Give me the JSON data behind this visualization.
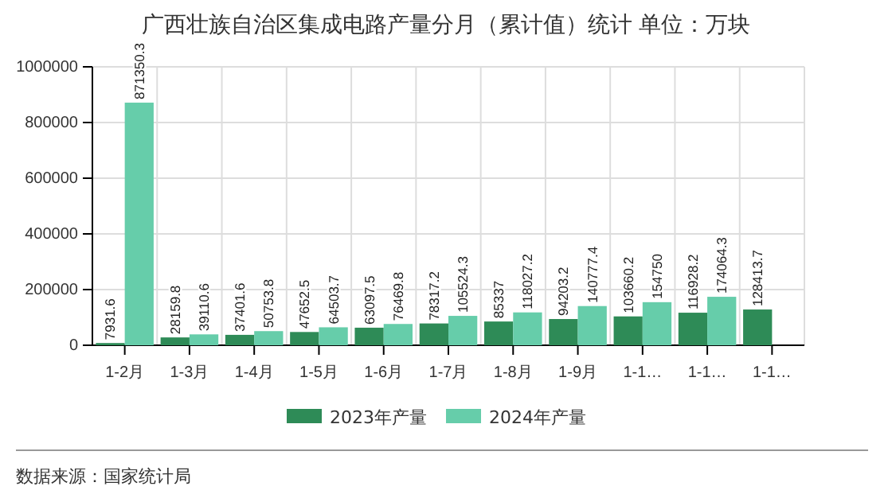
{
  "chart_data": {
    "type": "bar",
    "title": "广西壮族自治区集成电路产量分月（累计值）统计  单位：万块",
    "categories": [
      "1-2月",
      "1-3月",
      "1-4月",
      "1-5月",
      "1-6月",
      "1-7月",
      "1-8月",
      "1-9月",
      "1-1…",
      "1-1…",
      "1-1…"
    ],
    "series": [
      {
        "name": "2023年产量",
        "color": "#2e8b57",
        "values": [
          7931.6,
          28159.8,
          37401.6,
          47652.5,
          63097.5,
          78317.2,
          85337,
          94203.2,
          103660.2,
          116928.2,
          128413.7
        ]
      },
      {
        "name": "2024年产量",
        "color": "#66cdaa",
        "values": [
          871350.3,
          39110.6,
          50753.8,
          64503.7,
          76469.8,
          105524.3,
          118027.2,
          140777.4,
          154750,
          174064.3,
          null
        ]
      }
    ],
    "ylim": [
      0,
      1000000
    ],
    "yticks": [
      0,
      200000,
      400000,
      600000,
      800000,
      1000000
    ],
    "grid": true,
    "legend": "bottom",
    "data_labels": true,
    "annotations": [
      "数据来源：国家统计局"
    ]
  }
}
